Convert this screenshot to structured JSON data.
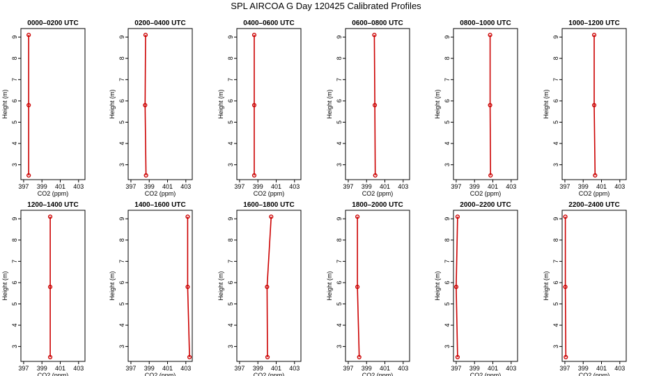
{
  "title": "SPL AIRCOA G  Day 120425  Calibrated Profiles",
  "chart_data": {
    "type": "line",
    "xlabel": "CO2 (ppm)",
    "ylabel": "Height (m)",
    "xlim": [
      396.7,
      403.7
    ],
    "ylim": [
      2.3,
      9.4
    ],
    "x_ticks": [
      397,
      399,
      401,
      403
    ],
    "y_ticks": [
      3,
      4,
      5,
      6,
      7,
      8,
      9
    ],
    "grid": false,
    "heights": [
      2.5,
      5.8,
      9.1
    ],
    "panels": [
      {
        "title": "0000–0200 UTC",
        "points": [
          {
            "x": 397.55,
            "y": 2.5
          },
          {
            "x": 397.55,
            "y": 5.8
          },
          {
            "x": 397.55,
            "y": 9.1
          }
        ]
      },
      {
        "title": "0200–0400 UTC",
        "points": [
          {
            "x": 398.65,
            "y": 2.5
          },
          {
            "x": 398.55,
            "y": 5.8
          },
          {
            "x": 398.6,
            "y": 9.1
          }
        ]
      },
      {
        "title": "0400–0600 UTC",
        "points": [
          {
            "x": 398.6,
            "y": 2.5
          },
          {
            "x": 398.6,
            "y": 5.8
          },
          {
            "x": 398.6,
            "y": 9.1
          }
        ]
      },
      {
        "title": "0600–0800 UTC",
        "points": [
          {
            "x": 399.95,
            "y": 2.5
          },
          {
            "x": 399.9,
            "y": 5.8
          },
          {
            "x": 399.85,
            "y": 9.1
          }
        ]
      },
      {
        "title": "0800–1000 UTC",
        "points": [
          {
            "x": 400.75,
            "y": 2.5
          },
          {
            "x": 400.7,
            "y": 5.8
          },
          {
            "x": 400.7,
            "y": 9.1
          }
        ]
      },
      {
        "title": "1000–1200 UTC",
        "points": [
          {
            "x": 400.3,
            "y": 2.5
          },
          {
            "x": 400.2,
            "y": 5.8
          },
          {
            "x": 400.2,
            "y": 9.1
          }
        ]
      },
      {
        "title": "1200–1400 UTC",
        "points": [
          {
            "x": 399.9,
            "y": 2.5
          },
          {
            "x": 399.9,
            "y": 5.8
          },
          {
            "x": 399.9,
            "y": 9.1
          }
        ]
      },
      {
        "title": "1400–1600 UTC",
        "points": [
          {
            "x": 403.4,
            "y": 2.5
          },
          {
            "x": 403.2,
            "y": 5.8
          },
          {
            "x": 403.2,
            "y": 9.1
          }
        ]
      },
      {
        "title": "1600–1800 UTC",
        "points": [
          {
            "x": 400.05,
            "y": 2.5
          },
          {
            "x": 400.0,
            "y": 5.8
          },
          {
            "x": 400.45,
            "y": 9.1
          }
        ]
      },
      {
        "title": "1800–2000 UTC",
        "points": [
          {
            "x": 398.2,
            "y": 2.5
          },
          {
            "x": 398.0,
            "y": 5.8
          },
          {
            "x": 398.0,
            "y": 9.1
          }
        ]
      },
      {
        "title": "2000–2200 UTC",
        "points": [
          {
            "x": 397.15,
            "y": 2.5
          },
          {
            "x": 397.0,
            "y": 5.8
          },
          {
            "x": 397.15,
            "y": 9.1
          }
        ]
      },
      {
        "title": "2200–2400 UTC",
        "points": [
          {
            "x": 397.1,
            "y": 2.5
          },
          {
            "x": 397.05,
            "y": 5.8
          },
          {
            "x": 397.05,
            "y": 9.1
          }
        ]
      }
    ]
  }
}
